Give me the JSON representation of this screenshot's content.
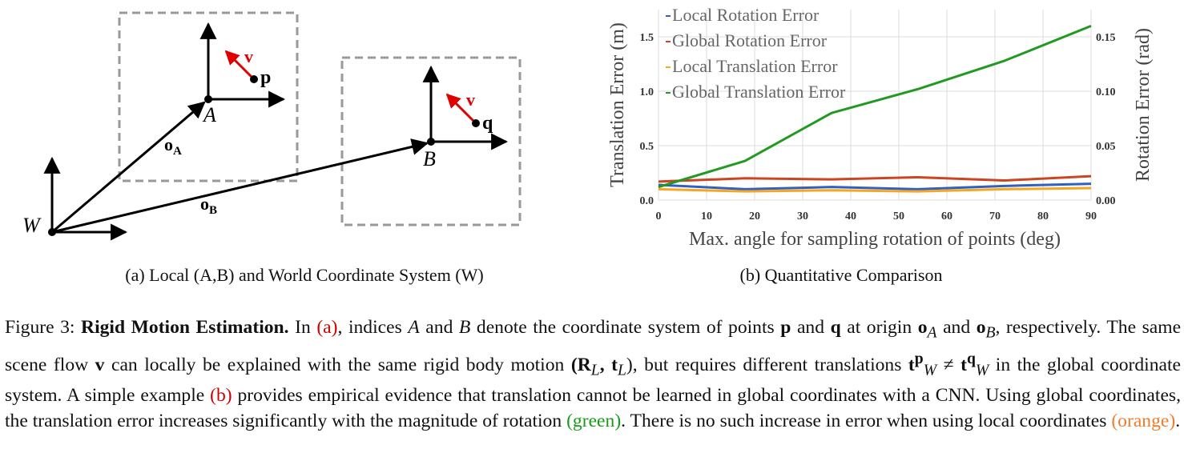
{
  "diagram": {
    "labels": {
      "W": "W",
      "A": "A",
      "B": "B",
      "oA": "o",
      "oA_sub": "A",
      "oB": "o",
      "oB_sub": "B",
      "v1": "v",
      "v2": "v",
      "p": "p",
      "q": "q"
    }
  },
  "subcaptions": {
    "a": "(a) Local (A,B) and World Coordinate System (W)",
    "b": "(b) Quantitative Comparison"
  },
  "chart_data": {
    "type": "line",
    "xlabel": "Max. angle for sampling rotation of points (deg)",
    "ylabel_left": "Translation Error (m)",
    "ylabel_right": "Rotation Error (rad)",
    "xlim": [
      0,
      90
    ],
    "ylim_left": [
      0,
      1.75
    ],
    "ylim_right": [
      0,
      0.175
    ],
    "xticks": [
      "0",
      "10",
      "20",
      "30",
      "40",
      "50",
      "60",
      "70",
      "80",
      "90"
    ],
    "yticks_left": [
      "0.0",
      "0.5",
      "1.0",
      "1.5"
    ],
    "yticks_right": [
      "0.00",
      "0.05",
      "0.10",
      "0.15"
    ],
    "grid": true,
    "legend_position": "top-left",
    "x": [
      0,
      18,
      36,
      54,
      72,
      90
    ],
    "series": [
      {
        "name": "Local Rotation Error",
        "axis": "right",
        "color": "#3060c0",
        "values": [
          0.014,
          0.01,
          0.012,
          0.01,
          0.013,
          0.015
        ]
      },
      {
        "name": "Global Rotation Error",
        "axis": "right",
        "color": "#cc4422",
        "values": [
          0.017,
          0.02,
          0.019,
          0.021,
          0.018,
          0.022
        ]
      },
      {
        "name": "Local Translation Error",
        "axis": "left",
        "color": "#f5a623",
        "values": [
          0.1,
          0.08,
          0.09,
          0.08,
          0.1,
          0.11
        ]
      },
      {
        "name": "Global Translation Error",
        "axis": "left",
        "color": "#229922",
        "values": [
          0.12,
          0.36,
          0.8,
          1.02,
          1.28,
          1.6
        ]
      }
    ]
  },
  "caption": {
    "figure_label": "Figure 3:",
    "title": "Rigid Motion Estimation.",
    "t1": "In",
    "ref_a": "(a)",
    "t2": ", indices",
    "A": "A",
    "t3": "and",
    "B": "B",
    "t4": "denote the coordinate system of points",
    "p": "p",
    "t5": "and",
    "q": "q",
    "t6": "at origin",
    "oA": "o",
    "oA_sub": "A",
    "t7": "and",
    "oB": "o",
    "oB_sub": "B",
    "t8": ", respectively. The same scene flow",
    "v": "v",
    "t9": "can locally be explained with the same rigid body motion",
    "motion": "(R",
    "motion_sub1": "L",
    "motion_mid": ", t",
    "motion_sub2": "L",
    "motion_end": "),",
    "t10": "but requires different translations",
    "tW_p": "t",
    "tW_p_sup": "p",
    "tW_p_sub": "W",
    "neq": "≠",
    "tW_q": "t",
    "tW_q_sup": "q",
    "tW_q_sub": "W",
    "t11": "in the global coordinate system. A simple example",
    "ref_b": "(b)",
    "t12": "provides empirical evidence that translation cannot be learned in global coordinates with a CNN. Using global coordinates, the translation error increases significantly with the magnitude of rotation",
    "green": "(green)",
    "t13": ". There is no such increase in error when using local coordinates",
    "orange": "(orange)",
    "t14": "."
  }
}
